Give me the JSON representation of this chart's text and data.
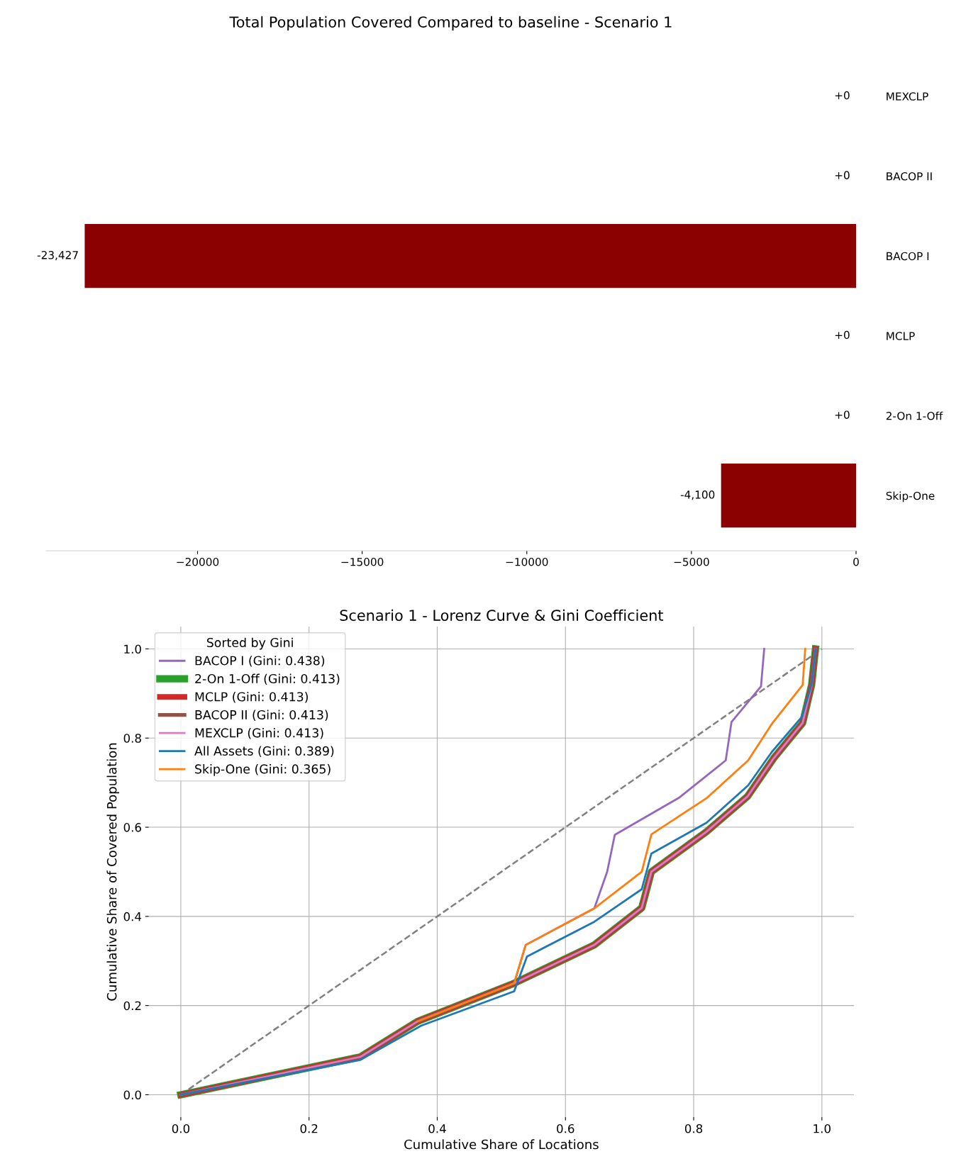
{
  "chart_data": [
    {
      "type": "bar",
      "orientation": "horizontal",
      "title": "Total Population Covered Compared to baseline - Scenario 1",
      "categories": [
        "MEXCLP",
        "BACOP II",
        "BACOP I",
        "MCLP",
        "2-On 1-Off",
        "Skip-One"
      ],
      "values": [
        0,
        0,
        -23427,
        0,
        0,
        -4100
      ],
      "color": "#8b0000",
      "value_labels": [
        "+0",
        "+0",
        "-23,427",
        "+0",
        "+0",
        "-4,100"
      ],
      "xlim": [
        -24600,
        0
      ],
      "xticks": [
        {
          "value": -20000,
          "label": "−20000"
        },
        {
          "value": -15000,
          "label": "−15000"
        },
        {
          "value": -10000,
          "label": "−10000"
        },
        {
          "value": -5000,
          "label": "−5000"
        },
        0
      ],
      "grid": false
    },
    {
      "type": "line",
      "title": "Scenario 1 - Lorenz Curve & Gini Coefficient",
      "xlabel": "Cumulative Share of Locations",
      "ylabel": "Cumulative Share of Covered Population",
      "legend_title": "Sorted by Gini",
      "legend": "top left",
      "grid": true,
      "xlim": [
        -0.05,
        1.05
      ],
      "ylim": [
        -0.05,
        1.05
      ],
      "xticks": [
        {
          "value": 0,
          "label": "0.0"
        },
        {
          "value": 0.2,
          "label": "0.2"
        },
        {
          "value": 0.4,
          "label": "0.4"
        },
        {
          "value": 0.6,
          "label": "0.6"
        },
        {
          "value": 0.8,
          "label": "0.8"
        },
        {
          "value": 1,
          "label": "1.0"
        }
      ],
      "yticks": [
        {
          "value": 0,
          "label": "0.0"
        },
        {
          "value": 0.2,
          "label": "0.2"
        },
        {
          "value": 0.4,
          "label": "0.4"
        },
        {
          "value": 0.6,
          "label": "0.6"
        },
        {
          "value": 0.8,
          "label": "0.8"
        },
        {
          "value": 1,
          "label": "1.0"
        }
      ],
      "series": [
        {
          "color": "#808080",
          "line_style": "dashed",
          "x": [
            0,
            1
          ],
          "values": [
            0,
            1
          ]
        },
        {
          "name": "BACOP I (Gini: 0.438)",
          "color": "#9467bd",
          "x": [
            0.37,
            0.52,
            0.538,
            0.645,
            0.665,
            0.677,
            0.778,
            0.85,
            0.859,
            0.905,
            0.91
          ],
          "values": [
            0.165,
            0.25,
            0.336,
            0.418,
            0.5,
            0.583,
            0.667,
            0.75,
            0.836,
            0.916,
            1.0
          ]
        },
        {
          "name": "2-On 1-Off (Gini: 0.413)",
          "color": "#2ca02c",
          "x": [
            0,
            0.28,
            0.37,
            0.52,
            0.645,
            0.719,
            0.734,
            0.82,
            0.884,
            0.925,
            0.97,
            0.984,
            0.99
          ],
          "values": [
            0,
            0.085,
            0.165,
            0.25,
            0.336,
            0.419,
            0.5,
            0.59,
            0.669,
            0.755,
            0.834,
            0.919,
            1.0
          ]
        },
        {
          "name": "MCLP (Gini: 0.413)",
          "color": "#d62728",
          "x": [
            0,
            0.28,
            0.37,
            0.52,
            0.645,
            0.719,
            0.734,
            0.82,
            0.884,
            0.925,
            0.97,
            0.984,
            0.99
          ],
          "values": [
            0,
            0.085,
            0.165,
            0.25,
            0.336,
            0.419,
            0.5,
            0.59,
            0.669,
            0.755,
            0.834,
            0.919,
            1.0
          ]
        },
        {
          "name": "BACOP II (Gini: 0.413)",
          "color": "#8c564b",
          "x": [
            0,
            0.28,
            0.37,
            0.52,
            0.645,
            0.719,
            0.734,
            0.82,
            0.884,
            0.925,
            0.97,
            0.984,
            0.99
          ],
          "values": [
            0,
            0.085,
            0.165,
            0.25,
            0.336,
            0.419,
            0.5,
            0.59,
            0.669,
            0.755,
            0.834,
            0.919,
            1.0
          ]
        },
        {
          "name": "MEXCLP (Gini: 0.413)",
          "color": "#e377c2",
          "x": [
            0,
            0.28,
            0.37,
            0.52,
            0.645,
            0.719,
            0.734,
            0.82,
            0.884,
            0.925,
            0.97,
            0.984,
            0.99
          ],
          "values": [
            0,
            0.085,
            0.165,
            0.25,
            0.336,
            0.419,
            0.5,
            0.59,
            0.669,
            0.755,
            0.834,
            0.919,
            1.0
          ]
        },
        {
          "name": "All Assets (Gini: 0.389)",
          "color": "#1f77b4",
          "x": [
            0,
            0.28,
            0.375,
            0.52,
            0.54,
            0.645,
            0.719,
            0.734,
            0.82,
            0.885,
            0.922,
            0.969,
            0.984,
            0.99
          ],
          "values": [
            0,
            0.078,
            0.155,
            0.232,
            0.31,
            0.388,
            0.461,
            0.541,
            0.61,
            0.694,
            0.769,
            0.848,
            0.921,
            1.0
          ]
        },
        {
          "name": "Skip-One (Gini: 0.365)",
          "color": "#ff7f0e",
          "x": [
            0.37,
            0.52,
            0.538,
            0.645,
            0.719,
            0.734,
            0.82,
            0.885,
            0.922,
            0.97,
            0.974
          ],
          "values": [
            0.165,
            0.25,
            0.336,
            0.418,
            0.5,
            0.584,
            0.665,
            0.75,
            0.832,
            0.919,
            1.0
          ]
        }
      ]
    }
  ]
}
